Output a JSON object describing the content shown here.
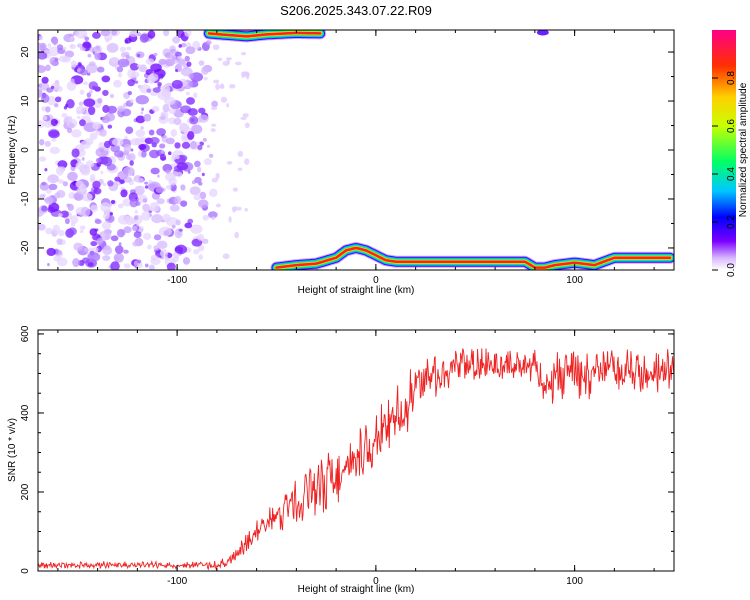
{
  "figure": {
    "title": "S206.2025.343.07.22.R09"
  },
  "chart_data": [
    {
      "type": "heatmap",
      "xlabel": "Height of straight line (km)",
      "ylabel": "Frequency (Hz)",
      "xlim": [
        -170,
        150
      ],
      "ylim": [
        -24.5,
        24.5
      ],
      "x_ticks": [
        -100,
        0,
        100
      ],
      "y_ticks": [
        -20,
        -10,
        0,
        10,
        20
      ],
      "colorbar": {
        "label": "Normalized spectral amplitude",
        "range": [
          0,
          1
        ],
        "ticks": [
          0.0,
          0.2,
          0.4,
          0.6,
          0.8
        ],
        "tick_labels": [
          "0.0",
          "0.2",
          "0.4",
          "0.6",
          "0.8"
        ],
        "colormap": [
          "#ffffff",
          "#d9b7ff",
          "#7a00ff",
          "#0000ff",
          "#00c8ff",
          "#00ff66",
          "#c8ff00",
          "#ffd000",
          "#ff3000",
          "#ff0088"
        ]
      },
      "noise_region": {
        "x_range": [
          -170,
          -80
        ],
        "y_range": [
          -24,
          24
        ],
        "amplitude": 0.12
      },
      "upper_band": {
        "description": "high amplitude segment near top edge",
        "x": [
          -84,
          -75,
          -65,
          -55,
          -40,
          -28
        ],
        "y": [
          23.8,
          23.5,
          23.2,
          23.6,
          23.9,
          23.8
        ],
        "amplitude": 0.85
      },
      "lower_trace": {
        "x": [
          -50,
          -40,
          -30,
          -20,
          -15,
          -10,
          -5,
          0,
          5,
          10,
          20,
          40,
          60,
          75,
          80,
          85,
          90,
          100,
          110,
          120,
          135,
          148
        ],
        "y": [
          -24,
          -23.5,
          -23.2,
          -22,
          -20.5,
          -20,
          -20.5,
          -21.5,
          -22.5,
          -22.8,
          -22.8,
          -22.8,
          -22.8,
          -22.8,
          -24,
          -24,
          -23.5,
          -23,
          -23.5,
          -22,
          -22,
          -22
        ],
        "amplitude": 0.88
      },
      "small_blobs": [
        {
          "x": 84,
          "y": 24,
          "amplitude": 0.2
        }
      ]
    },
    {
      "type": "line",
      "xlabel": "Height of straight line (km)",
      "ylabel": "SNR (10 * v/v)",
      "xlim": [
        -170,
        150
      ],
      "ylim": [
        0,
        610
      ],
      "x_ticks": [
        -100,
        0,
        100
      ],
      "y_ticks": [
        0,
        200,
        400,
        600
      ],
      "series": [
        {
          "color": "#ee2222",
          "x": [
            -170,
            -150,
            -130,
            -110,
            -90,
            -80,
            -75,
            -70,
            -65,
            -60,
            -55,
            -50,
            -45,
            -40,
            -35,
            -30,
            -25,
            -20,
            -15,
            -10,
            -5,
            0,
            5,
            10,
            15,
            20,
            25,
            30,
            40,
            50,
            60,
            70,
            80,
            88,
            92,
            100,
            110,
            120,
            130,
            140,
            150
          ],
          "mean": [
            15,
            15,
            15,
            15,
            15,
            15,
            20,
            40,
            70,
            100,
            120,
            140,
            160,
            180,
            200,
            220,
            230,
            240,
            250,
            275,
            300,
            330,
            360,
            390,
            420,
            460,
            490,
            500,
            510,
            520,
            520,
            520,
            520,
            460,
            500,
            520,
            500,
            510,
            500,
            510,
            500
          ],
          "spread": [
            10,
            10,
            10,
            10,
            10,
            12,
            15,
            25,
            30,
            35,
            40,
            45,
            60,
            90,
            100,
            100,
            90,
            80,
            80,
            80,
            80,
            80,
            80,
            80,
            80,
            70,
            70,
            60,
            55,
            55,
            55,
            50,
            50,
            60,
            90,
            90,
            70,
            70,
            70,
            60,
            70
          ]
        }
      ]
    }
  ]
}
